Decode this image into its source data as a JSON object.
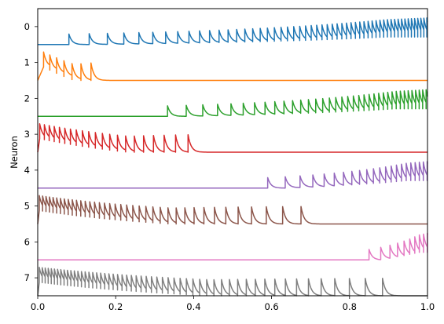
{
  "chart_data": {
    "type": "line",
    "title": "",
    "xlabel": "",
    "ylabel": "Neuron",
    "xlim": [
      0.0,
      1.0
    ],
    "ylim": [
      7.5,
      -0.5
    ],
    "grid": false,
    "x_ticks": [
      "0.0",
      "0.2",
      "0.4",
      "0.6",
      "0.8",
      "1.0"
    ],
    "y_ticks": [
      "0",
      "1",
      "2",
      "3",
      "4",
      "5",
      "6",
      "7"
    ],
    "spike_height": 0.75,
    "series": [
      {
        "neuron": 0,
        "color": "#1f77b4",
        "active_start": 0.08,
        "active_end": 1.0,
        "first_isi": 0.052,
        "last_isi": 0.0075,
        "envelope": "growing"
      },
      {
        "neuron": 1,
        "color": "#ff7f0e",
        "active_start": 0.015,
        "active_end": 0.155,
        "first_isi": 0.016,
        "last_isi": 0.032,
        "envelope": "decaying"
      },
      {
        "neuron": 2,
        "color": "#2ca02c",
        "active_start": 0.333,
        "active_end": 1.0,
        "first_isi": 0.048,
        "last_isi": 0.0085,
        "envelope": "growing"
      },
      {
        "neuron": 3,
        "color": "#d62728",
        "active_start": 0.005,
        "active_end": 0.415,
        "first_isi": 0.012,
        "last_isi": 0.038,
        "envelope": "decaying"
      },
      {
        "neuron": 4,
        "color": "#9467bd",
        "active_start": 0.59,
        "active_end": 1.0,
        "first_isi": 0.045,
        "last_isi": 0.0095,
        "envelope": "growing"
      },
      {
        "neuron": 5,
        "color": "#8c564b",
        "active_start": 0.004,
        "active_end": 0.685,
        "first_isi": 0.0085,
        "last_isi": 0.055,
        "envelope": "decaying"
      },
      {
        "neuron": 6,
        "color": "#e377c2",
        "active_start": 0.85,
        "active_end": 1.0,
        "first_isi": 0.03,
        "last_isi": 0.009,
        "envelope": "growing"
      },
      {
        "neuron": 7,
        "color": "#7f7f7f",
        "active_start": 0.004,
        "active_end": 0.915,
        "first_isi": 0.0075,
        "last_isi": 0.052,
        "envelope": "decaying"
      }
    ]
  }
}
